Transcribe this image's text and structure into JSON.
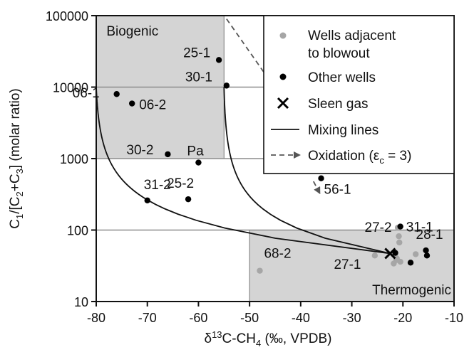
{
  "chart_data": {
    "type": "scatter",
    "xlabel": "δ13C-CH4 (‰, VPDB)",
    "xlabel_parts": {
      "delta": "δ",
      "sup": "13",
      "base": "C-CH",
      "sub": "4",
      "rest": "  (‰, VPDB)"
    },
    "ylabel": "C1/[C2+C3] (molar ratio)",
    "ylabel_parts": [
      "C",
      "1",
      "/[C",
      "2",
      "+C",
      "3",
      "] (molar ratio)"
    ],
    "xlim": [
      -80,
      -10
    ],
    "ylim": [
      10,
      100000
    ],
    "yscale": "log",
    "x_ticks": [
      "-80",
      "-70",
      "-60",
      "-50",
      "-40",
      "-30",
      "-20",
      "-10"
    ],
    "x_tick_values": [
      -80,
      -70,
      -60,
      -50,
      -40,
      -30,
      -20,
      -10
    ],
    "y_ticks": [
      "10",
      "100",
      "1000",
      "10000",
      "100000"
    ],
    "y_tick_values": [
      10,
      100,
      1000,
      10000,
      100000
    ],
    "regions": [
      {
        "label": "Biogenic",
        "x": [
          -80,
          -55
        ],
        "y": [
          1000,
          100000
        ],
        "color": "#d4d4d4"
      },
      {
        "label": "Thermogenic",
        "x": [
          -50,
          -10
        ],
        "y": [
          10,
          100
        ],
        "color": "#d4d4d4"
      }
    ],
    "hlines": [
      100,
      1000,
      10000
    ],
    "series": [
      {
        "name": "Wells adjacent to blowout",
        "color": "#a6a6a6",
        "points": [
          {
            "x": -48,
            "y": 27,
            "label": "68-2"
          },
          {
            "x": -25.5,
            "y": 44,
            "label": ""
          },
          {
            "x": -21,
            "y": 108,
            "label": ""
          },
          {
            "x": -20.8,
            "y": 82,
            "label": ""
          },
          {
            "x": -20.7,
            "y": 67,
            "label": ""
          },
          {
            "x": -21.5,
            "y": 46,
            "label": ""
          },
          {
            "x": -21.3,
            "y": 38,
            "label": ""
          },
          {
            "x": -21.8,
            "y": 34,
            "label": ""
          },
          {
            "x": -20.5,
            "y": 36,
            "label": ""
          },
          {
            "x": -21.2,
            "y": 40,
            "label": ""
          },
          {
            "x": -17.5,
            "y": 46,
            "label": ""
          }
        ]
      },
      {
        "name": "Other wells",
        "color": "#000000",
        "points": [
          {
            "x": -76,
            "y": 8000,
            "label": "06-1"
          },
          {
            "x": -73,
            "y": 5900,
            "label": "06-2"
          },
          {
            "x": -56,
            "y": 24000,
            "label": "25-1"
          },
          {
            "x": -54.5,
            "y": 10500,
            "label": "30-1"
          },
          {
            "x": -66,
            "y": 1150,
            "label": "30-2"
          },
          {
            "x": -60,
            "y": 880,
            "label": "Pa"
          },
          {
            "x": -70,
            "y": 260,
            "label": "31-2"
          },
          {
            "x": -62,
            "y": 270,
            "label": "25-2"
          },
          {
            "x": -36,
            "y": 530,
            "label": "56-1"
          },
          {
            "x": -20.5,
            "y": 112,
            "label": "31-1"
          },
          {
            "x": -15.5,
            "y": 52,
            "label": "28-1"
          },
          {
            "x": -15.3,
            "y": 44,
            "label": ""
          },
          {
            "x": -18.5,
            "y": 35,
            "label": ""
          },
          {
            "x": -21.5,
            "y": 48,
            "label": ""
          }
        ]
      }
    ],
    "sleen_gas": {
      "name": "Sleen gas",
      "x": -22.5,
      "y": 47
    },
    "mixing_lines": {
      "name": "Mixing lines",
      "endpoint": {
        "x": -22.5,
        "y": 47
      },
      "sources": [
        {
          "x": -80,
          "y": 10000
        },
        {
          "x": -55,
          "y": 10000
        }
      ]
    },
    "oxidation": {
      "name": "Oxidation (εc = 3)",
      "name_parts": [
        "Oxidation (ε",
        "c",
        " = 3)"
      ],
      "arrows": [
        {
          "from": {
            "x": -54.5,
            "y": 90000
          },
          "to": {
            "x": -43,
            "y": 6000
          }
        },
        {
          "from": {
            "x": -37.5,
            "y": 480
          },
          "to": {
            "x": -36.3,
            "y": 330
          }
        }
      ]
    },
    "legend": {
      "position": "top-right",
      "entries": [
        {
          "text": [
            "Wells adjacent",
            "to blowout"
          ],
          "marker": "gray-dot"
        },
        {
          "text": [
            "Other wells"
          ],
          "marker": "black-dot"
        },
        {
          "text": [
            "Sleen gas"
          ],
          "marker": "x"
        },
        {
          "text": [
            "Mixing lines"
          ],
          "marker": "solid-line"
        },
        {
          "text": [
            "Oxidation (εc = 3)"
          ],
          "marker": "dashed-arrow"
        }
      ]
    }
  }
}
